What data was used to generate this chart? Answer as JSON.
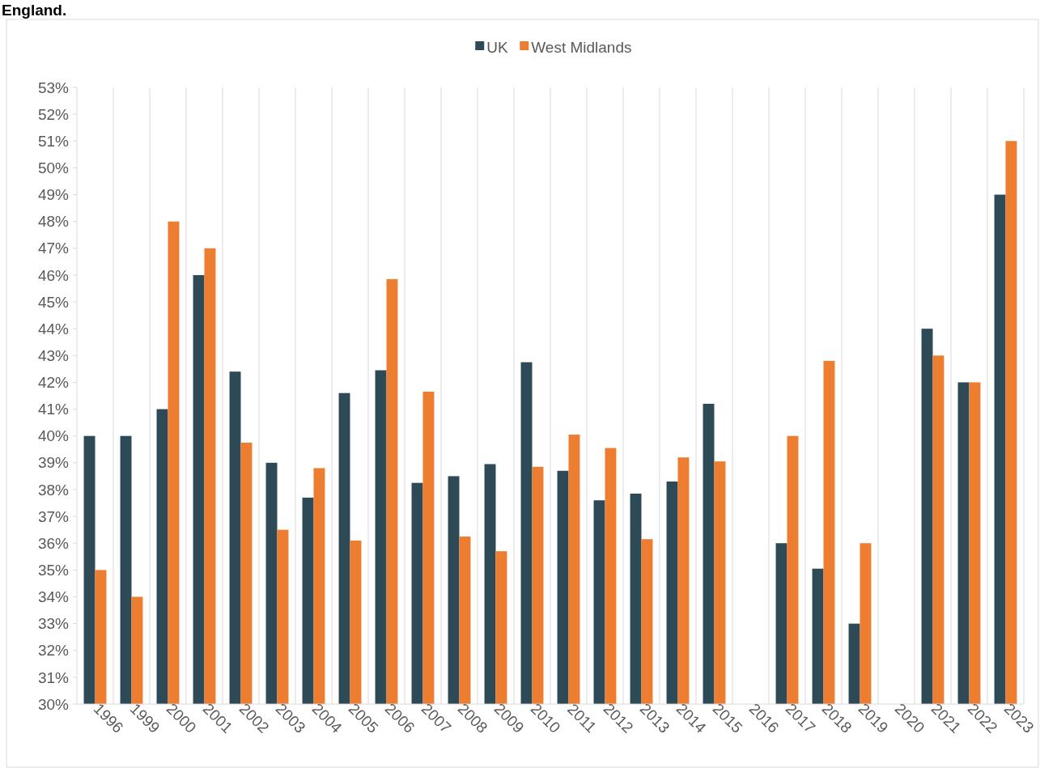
{
  "chart_data": {
    "type": "bar",
    "title": "England.",
    "categories": [
      "1996",
      "1999",
      "2000",
      "2001",
      "2002",
      "2003",
      "2004",
      "2005",
      "2006",
      "2007",
      "2008",
      "2009",
      "2010",
      "2011",
      "2012",
      "2013",
      "2014",
      "2015",
      "2016",
      "2017",
      "2018",
      "2019",
      "2020",
      "2021",
      "2022",
      "2023"
    ],
    "series": [
      {
        "name": "UK",
        "color": "#2e4a56",
        "values": [
          40,
          40,
          41,
          46,
          42.4,
          39,
          37.7,
          41.6,
          42.45,
          38.25,
          38.5,
          38.95,
          42.75,
          38.7,
          37.6,
          37.85,
          38.3,
          41.2,
          null,
          36,
          35.05,
          33,
          null,
          44,
          42,
          49
        ]
      },
      {
        "name": "West Midlands",
        "color": "#ed7d31",
        "values": [
          35,
          34,
          48,
          47,
          39.75,
          36.5,
          38.8,
          36.1,
          45.85,
          41.65,
          36.25,
          35.7,
          38.85,
          40.05,
          39.55,
          36.15,
          39.2,
          39.05,
          null,
          40,
          42.8,
          36,
          null,
          43,
          42,
          51
        ]
      }
    ],
    "ylim": [
      30,
      53
    ],
    "yticks": [
      {
        "value": 30,
        "label": "30%"
      },
      {
        "value": 31,
        "label": "31%"
      },
      {
        "value": 32,
        "label": "32%"
      },
      {
        "value": 33,
        "label": "33%"
      },
      {
        "value": 34,
        "label": "34%"
      },
      {
        "value": 35,
        "label": "35%"
      },
      {
        "value": 36,
        "label": "36%"
      },
      {
        "value": 37,
        "label": "37%"
      },
      {
        "value": 38,
        "label": "38%"
      },
      {
        "value": 39,
        "label": "39%"
      },
      {
        "value": 40,
        "label": "40%"
      },
      {
        "value": 41,
        "label": "41%"
      },
      {
        "value": 42,
        "label": "42%"
      },
      {
        "value": 43,
        "label": "43%"
      },
      {
        "value": 44,
        "label": "44%"
      },
      {
        "value": 45,
        "label": "45%"
      },
      {
        "value": 46,
        "label": "46%"
      },
      {
        "value": 47,
        "label": "47%"
      },
      {
        "value": 48,
        "label": "48%"
      },
      {
        "value": 49,
        "label": "49%"
      },
      {
        "value": 50,
        "label": "50%"
      },
      {
        "value": 51,
        "label": "51%"
      },
      {
        "value": 52,
        "label": "52%"
      },
      {
        "value": 53,
        "label": "53%"
      }
    ],
    "grid": "x",
    "legend": "top"
  }
}
